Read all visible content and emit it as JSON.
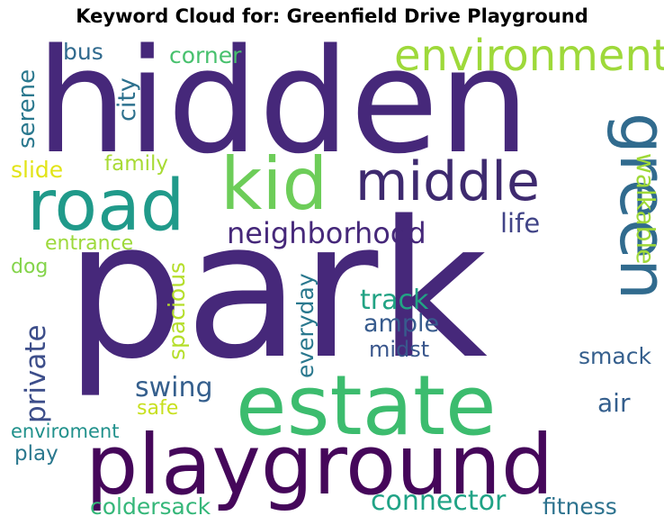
{
  "title": "Keyword Cloud for: Greenfield Drive Playground",
  "chart_data": {
    "type": "wordcloud",
    "title": "Keyword Cloud for: Greenfield Drive Playground",
    "words": [
      {
        "text": "park",
        "weight": 1.0,
        "color": "#46287a",
        "orientation": "horizontal"
      },
      {
        "text": "hidden",
        "weight": 0.78,
        "color": "#46287a",
        "orientation": "horizontal"
      },
      {
        "text": "playground",
        "weight": 0.55,
        "color": "#45075a",
        "orientation": "horizontal"
      },
      {
        "text": "estate",
        "weight": 0.52,
        "color": "#3cbc6e",
        "orientation": "horizontal"
      },
      {
        "text": "road",
        "weight": 0.45,
        "color": "#209a8a",
        "orientation": "horizontal"
      },
      {
        "text": "kid",
        "weight": 0.45,
        "color": "#6dcd59",
        "orientation": "horizontal"
      },
      {
        "text": "middle",
        "weight": 0.38,
        "color": "#3e2a6f",
        "orientation": "horizontal"
      },
      {
        "text": "green",
        "weight": 0.4,
        "color": "#316b8e",
        "orientation": "vertical"
      },
      {
        "text": "environment",
        "weight": 0.28,
        "color": "#9ed93a",
        "orientation": "horizontal"
      },
      {
        "text": "neighborhood",
        "weight": 0.17,
        "color": "#46287a",
        "orientation": "horizontal"
      },
      {
        "text": "walkable",
        "weight": 0.15,
        "color": "#9fd938",
        "orientation": "vertical"
      },
      {
        "text": "connector",
        "weight": 0.15,
        "color": "#20a386",
        "orientation": "horizontal"
      },
      {
        "text": "private",
        "weight": 0.17,
        "color": "#3d4e8a",
        "orientation": "vertical"
      },
      {
        "text": "track",
        "weight": 0.15,
        "color": "#22a384",
        "orientation": "horizontal"
      },
      {
        "text": "swing",
        "weight": 0.15,
        "color": "#355f8d",
        "orientation": "horizontal"
      },
      {
        "text": "city",
        "weight": 0.14,
        "color": "#2d718e",
        "orientation": "vertical"
      },
      {
        "text": "life",
        "weight": 0.14,
        "color": "#414487",
        "orientation": "horizontal"
      },
      {
        "text": "ample",
        "weight": 0.14,
        "color": "#375b8d",
        "orientation": "horizontal"
      },
      {
        "text": "serene",
        "weight": 0.13,
        "color": "#2a788e",
        "orientation": "vertical"
      },
      {
        "text": "spacious",
        "weight": 0.13,
        "color": "#b5de2b",
        "orientation": "vertical"
      },
      {
        "text": "everyday",
        "weight": 0.13,
        "color": "#2a788e",
        "orientation": "vertical"
      },
      {
        "text": "bus",
        "weight": 0.13,
        "color": "#306a8e",
        "orientation": "horizontal"
      },
      {
        "text": "corner",
        "weight": 0.13,
        "color": "#48c16e",
        "orientation": "horizontal"
      },
      {
        "text": "air",
        "weight": 0.13,
        "color": "#355f8d",
        "orientation": "horizontal"
      },
      {
        "text": "fitness",
        "weight": 0.13,
        "color": "#2c728e",
        "orientation": "horizontal"
      },
      {
        "text": "coldersack",
        "weight": 0.13,
        "color": "#35b779",
        "orientation": "horizontal"
      },
      {
        "text": "slide",
        "weight": 0.12,
        "color": "#e2e418",
        "orientation": "horizontal"
      },
      {
        "text": "family",
        "weight": 0.11,
        "color": "#a8db34",
        "orientation": "horizontal"
      },
      {
        "text": "entrance",
        "weight": 0.11,
        "color": "#9dd93b",
        "orientation": "horizontal"
      },
      {
        "text": "dog",
        "weight": 0.11,
        "color": "#84d44b",
        "orientation": "horizontal"
      },
      {
        "text": "midst",
        "weight": 0.11,
        "color": "#39568c",
        "orientation": "horizontal"
      },
      {
        "text": "smack",
        "weight": 0.11,
        "color": "#355f8d",
        "orientation": "horizontal"
      },
      {
        "text": "safe",
        "weight": 0.11,
        "color": "#c8e020",
        "orientation": "horizontal"
      },
      {
        "text": "enviroment",
        "weight": 0.1,
        "color": "#21918c",
        "orientation": "horizontal"
      },
      {
        "text": "play",
        "weight": 0.11,
        "color": "#2a788e",
        "orientation": "horizontal"
      }
    ]
  }
}
